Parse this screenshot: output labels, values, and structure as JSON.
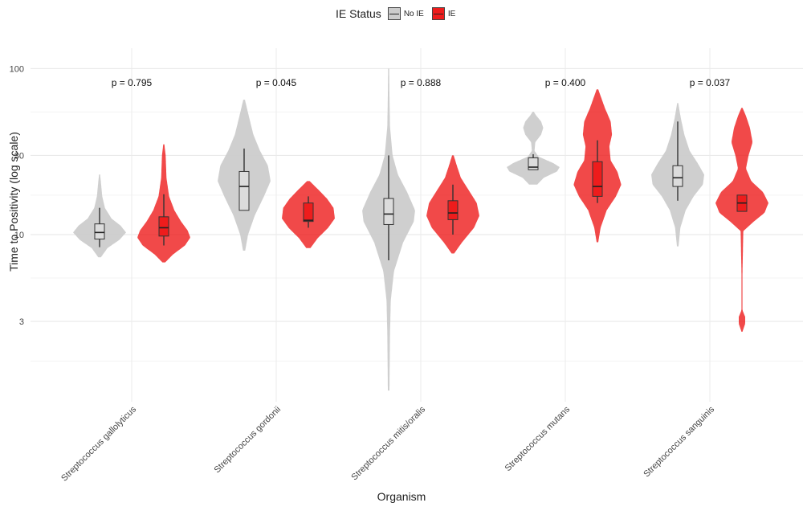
{
  "legend": {
    "title": "IE Status",
    "items": [
      {
        "label": "No IE",
        "color": "#cccccc"
      },
      {
        "label": "IE",
        "color": "#ee1c1c"
      }
    ]
  },
  "chart_data": {
    "type": "violin",
    "xlabel": "Organism",
    "ylabel": "Time to Positivity (log scale)",
    "yscale": "log",
    "yticks": [
      3,
      10,
      30,
      100
    ],
    "ylim": [
      0.9,
      110
    ],
    "grid": true,
    "legend_position": "top",
    "categories": [
      "Streptococcus gallolyticus",
      "Streptococcus gordonii",
      "Streptococcus mitis/oralis",
      "Streptococcus mutans",
      "Streptococcus sanguinis"
    ],
    "p_values": [
      "p = 0.795",
      "p = 0.045",
      "p = 0.888",
      "p = 0.400",
      "p = 0.037"
    ],
    "series": [
      {
        "name": "No IE",
        "color": "#cccccc",
        "groups": [
          {
            "range": [
              7.3,
              23
            ],
            "box": {
              "q1": 9.4,
              "median": 10.3,
              "q3": 11.6,
              "whisker_low": 8.4,
              "whisker_high": 14.5
            },
            "density": [
              [
                7.3,
                0.05
              ],
              [
                8.3,
                0.3
              ],
              [
                9.3,
                0.75
              ],
              [
                10.3,
                1.0
              ],
              [
                11.3,
                0.8
              ],
              [
                12.5,
                0.45
              ],
              [
                14.5,
                0.2
              ],
              [
                17,
                0.1
              ],
              [
                20,
                0.06
              ],
              [
                23,
                0.02
              ]
            ]
          },
          {
            "range": [
              8,
              65
            ],
            "box": {
              "q1": 14,
              "median": 19.5,
              "q3": 24,
              "whisker_low": 14,
              "whisker_high": 33
            },
            "density": [
              [
                8,
                0.04
              ],
              [
                10,
                0.15
              ],
              [
                13,
                0.4
              ],
              [
                17,
                0.75
              ],
              [
                21,
                1.0
              ],
              [
                26,
                0.9
              ],
              [
                32,
                0.6
              ],
              [
                40,
                0.35
              ],
              [
                50,
                0.2
              ],
              [
                65,
                0.03
              ]
            ]
          },
          {
            "range": [
              1.15,
              100
            ],
            "box": {
              "q1": 11.5,
              "median": 13.3,
              "q3": 16.5,
              "whisker_low": 7,
              "whisker_high": 30
            },
            "density": [
              [
                1.15,
                0.03
              ],
              [
                2.5,
                0.05
              ],
              [
                4,
                0.08
              ],
              [
                6,
                0.2
              ],
              [
                9,
                0.55
              ],
              [
                12,
                0.95
              ],
              [
                14,
                1.0
              ],
              [
                18,
                0.7
              ],
              [
                23,
                0.35
              ],
              [
                30,
                0.15
              ],
              [
                45,
                0.05
              ],
              [
                70,
                0.03
              ],
              [
                100,
                0.02
              ]
            ]
          },
          {
            "range": [
              20,
              55
            ],
            "box": {
              "q1": 24.6,
              "median": 25.5,
              "q3": 29,
              "whisker_low": 24.6,
              "whisker_high": 30.5
            },
            "density": [
              [
                20,
                0.15
              ],
              [
                22,
                0.4
              ],
              [
                24,
                0.9
              ],
              [
                25.5,
                1.0
              ],
              [
                27,
                0.75
              ],
              [
                29.5,
                0.2
              ],
              [
                32,
                0.05
              ],
              [
                36,
                0.08
              ],
              [
                40,
                0.3
              ],
              [
                44,
                0.38
              ],
              [
                48,
                0.3
              ],
              [
                52,
                0.12
              ],
              [
                55,
                0.02
              ]
            ]
          },
          {
            "range": [
              8.5,
              62
            ],
            "box": {
              "q1": 19.5,
              "median": 22,
              "q3": 26,
              "whisker_low": 16,
              "whisker_high": 48
            },
            "density": [
              [
                8.5,
                0.03
              ],
              [
                11,
                0.1
              ],
              [
                14,
                0.3
              ],
              [
                17,
                0.6
              ],
              [
                20,
                0.95
              ],
              [
                23,
                1.0
              ],
              [
                27,
                0.75
              ],
              [
                32,
                0.45
              ],
              [
                40,
                0.25
              ],
              [
                50,
                0.12
              ],
              [
                62,
                0.02
              ]
            ]
          }
        ]
      },
      {
        "name": "IE",
        "color": "#ee1c1c",
        "groups": [
          {
            "range": [
              6.8,
              35
            ],
            "box": {
              "q1": 9.8,
              "median": 11,
              "q3": 12.8,
              "whisker_low": 8.6,
              "whisker_high": 17.5
            },
            "density": [
              [
                6.8,
                0.05
              ],
              [
                7.6,
                0.35
              ],
              [
                8.6,
                0.8
              ],
              [
                9.6,
                1.0
              ],
              [
                10.6,
                0.9
              ],
              [
                12,
                0.65
              ],
              [
                14,
                0.4
              ],
              [
                17,
                0.2
              ],
              [
                22,
                0.1
              ],
              [
                30,
                0.07
              ],
              [
                35,
                0.02
              ]
            ]
          },
          {
            "range": [
              8.3,
              21
            ],
            "box": {
              "q1": 12,
              "median": 12.2,
              "q3": 15.5,
              "whisker_low": 11,
              "whisker_high": 17
            },
            "raw_box_median_label": "",
            "density": [
              [
                8.3,
                0.08
              ],
              [
                9.5,
                0.35
              ],
              [
                11,
                0.75
              ],
              [
                12.5,
                1.0
              ],
              [
                14.5,
                0.95
              ],
              [
                16.5,
                0.7
              ],
              [
                18.5,
                0.4
              ],
              [
                21,
                0.05
              ]
            ]
          },
          {
            "range": [
              7.7,
              30
            ],
            "box": {
              "q1": 12.3,
              "median": 13.5,
              "q3": 16,
              "whisker_low": 10,
              "whisker_high": 20
            },
            "density": [
              [
                7.7,
                0.05
              ],
              [
                9,
                0.35
              ],
              [
                11,
                0.8
              ],
              [
                13,
                1.0
              ],
              [
                15.5,
                0.9
              ],
              [
                18.5,
                0.6
              ],
              [
                22,
                0.3
              ],
              [
                26,
                0.15
              ],
              [
                30,
                0.03
              ]
            ]
          },
          {
            "range": [
              9,
              75
            ],
            "box": {
              "q1": 17,
              "median": 19.5,
              "q3": 27.5,
              "whisker_low": 15.5,
              "whisker_high": 37
            },
            "density": [
              [
                9,
                0.03
              ],
              [
                11,
                0.12
              ],
              [
                14,
                0.35
              ],
              [
                17,
                0.7
              ],
              [
                20,
                0.9
              ],
              [
                24,
                0.75
              ],
              [
                28,
                0.5
              ],
              [
                34,
                0.45
              ],
              [
                40,
                0.55
              ],
              [
                48,
                0.5
              ],
              [
                58,
                0.28
              ],
              [
                75,
                0.03
              ]
            ]
          },
          {
            "range": [
              2.6,
              58
            ],
            "box": {
              "q1": 13.8,
              "median": 15.5,
              "q3": 17.3,
              "whisker_low": 13.8,
              "whisker_high": 17.3
            },
            "density": [
              [
                2.6,
                0.02
              ],
              [
                2.9,
                0.12
              ],
              [
                3.2,
                0.12
              ],
              [
                3.5,
                0.02
              ],
              [
                4.5,
                0.005
              ],
              [
                10.5,
                0.05
              ],
              [
                12,
                0.45
              ],
              [
                13.5,
                0.85
              ],
              [
                15.5,
                1.0
              ],
              [
                18,
                0.8
              ],
              [
                21,
                0.35
              ],
              [
                25,
                0.15
              ],
              [
                30,
                0.25
              ],
              [
                36,
                0.4
              ],
              [
                44,
                0.3
              ],
              [
                52,
                0.15
              ],
              [
                58,
                0.02
              ]
            ]
          }
        ]
      }
    ]
  }
}
